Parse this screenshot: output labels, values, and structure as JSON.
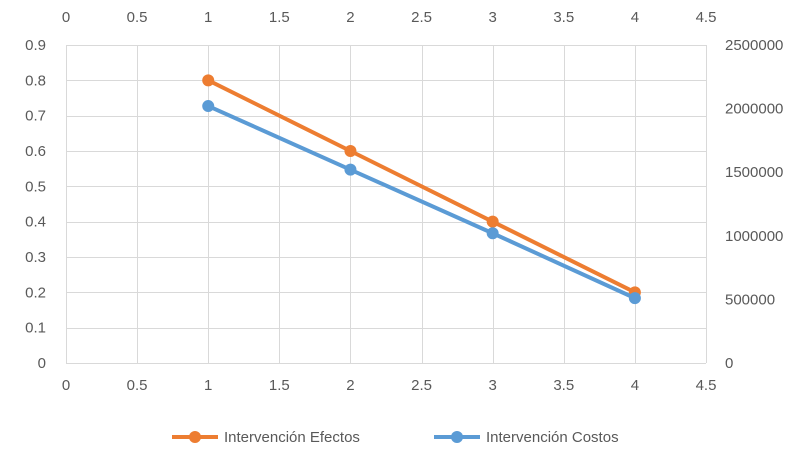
{
  "chart_data": {
    "type": "scatter",
    "x_primary": {
      "min": 0,
      "max": 4.5,
      "step": 0.5,
      "ticks": [
        "0",
        "0.5",
        "1",
        "1.5",
        "2",
        "2.5",
        "3",
        "3.5",
        "4",
        "4.5"
      ]
    },
    "x_secondary": {
      "min": 0,
      "max": 4.5,
      "step": 0.5,
      "ticks": [
        "0",
        "0.5",
        "1",
        "1.5",
        "2",
        "2.5",
        "3",
        "3.5",
        "4",
        "4.5"
      ]
    },
    "y_primary": {
      "min": 0,
      "max": 0.9,
      "step": 0.1,
      "ticks": [
        "0",
        "0.1",
        "0.2",
        "0.3",
        "0.4",
        "0.5",
        "0.6",
        "0.7",
        "0.8",
        "0.9"
      ]
    },
    "y_secondary": {
      "min": 0,
      "max": 2500000,
      "step": 500000,
      "ticks": [
        "0",
        "500000",
        "1000000",
        "1500000",
        "2000000",
        "2500000"
      ]
    },
    "grid": true,
    "legend_position": "bottom",
    "series": [
      {
        "name": "Intervención Efectos",
        "axis": "primary",
        "color": "#ED7D31",
        "x": [
          1,
          2,
          3,
          4
        ],
        "y": [
          0.8,
          0.6,
          0.4,
          0.2
        ]
      },
      {
        "name": "Intervención Costos",
        "axis": "secondary",
        "color": "#5B9BD5",
        "x": [
          1,
          2,
          3,
          4
        ],
        "y": [
          2020000,
          1520000,
          1020000,
          510000
        ]
      }
    ]
  }
}
